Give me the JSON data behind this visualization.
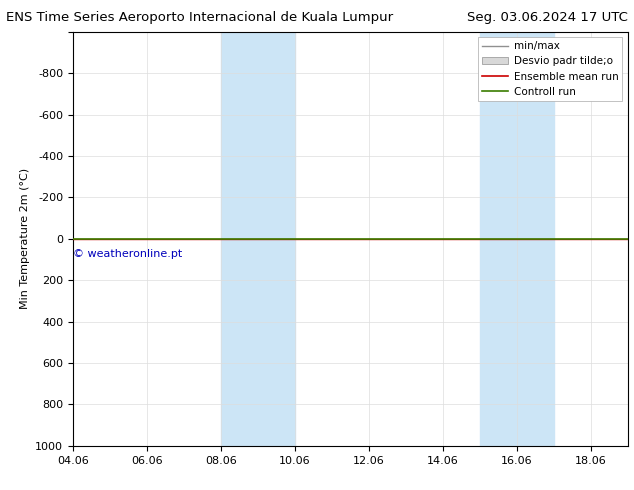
{
  "title_left": "ENS Time Series Aeroporto Internacional de Kuala Lumpur",
  "title_right": "Seg. 03.06.2024 17 UTC",
  "ylabel": "Min Temperature 2m (°C)",
  "ylim_top": -1000,
  "ylim_bottom": 1000,
  "yticks": [
    -1000,
    -800,
    -600,
    -400,
    -200,
    0,
    200,
    400,
    600,
    800,
    1000
  ],
  "ytick_labels": [
    "",
    "-800",
    "-600",
    "-400",
    "-200",
    "0",
    "200",
    "400",
    "600",
    "800",
    "1000"
  ],
  "xtick_labels": [
    "04.06",
    "06.06",
    "08.06",
    "10.06",
    "12.06",
    "14.06",
    "16.06",
    "18.06"
  ],
  "xtick_positions": [
    0,
    2,
    4,
    6,
    8,
    10,
    12,
    14
  ],
  "xlim": [
    0,
    15
  ],
  "shaded_regions": [
    {
      "x_start": 4,
      "x_end": 6,
      "color": "#cce5f6"
    },
    {
      "x_start": 11,
      "x_end": 13,
      "color": "#cce5f6"
    }
  ],
  "control_run_y": 0,
  "control_run_color": "#3a7d00",
  "ensemble_mean_color": "#cc0000",
  "minmax_color": "#909090",
  "stddev_facecolor": "#d8d8d8",
  "stddev_edgecolor": "#909090",
  "legend_labels": [
    "min/max",
    "Desvio padr tilde;o",
    "Ensemble mean run",
    "Controll run"
  ],
  "watermark": "© weatheronline.pt",
  "watermark_color": "#0000bb",
  "background_color": "#ffffff",
  "plot_bg_color": "#ffffff",
  "title_fontsize": 9.5,
  "ylabel_fontsize": 8,
  "tick_fontsize": 8,
  "legend_fontsize": 7.5,
  "watermark_fontsize": 8
}
